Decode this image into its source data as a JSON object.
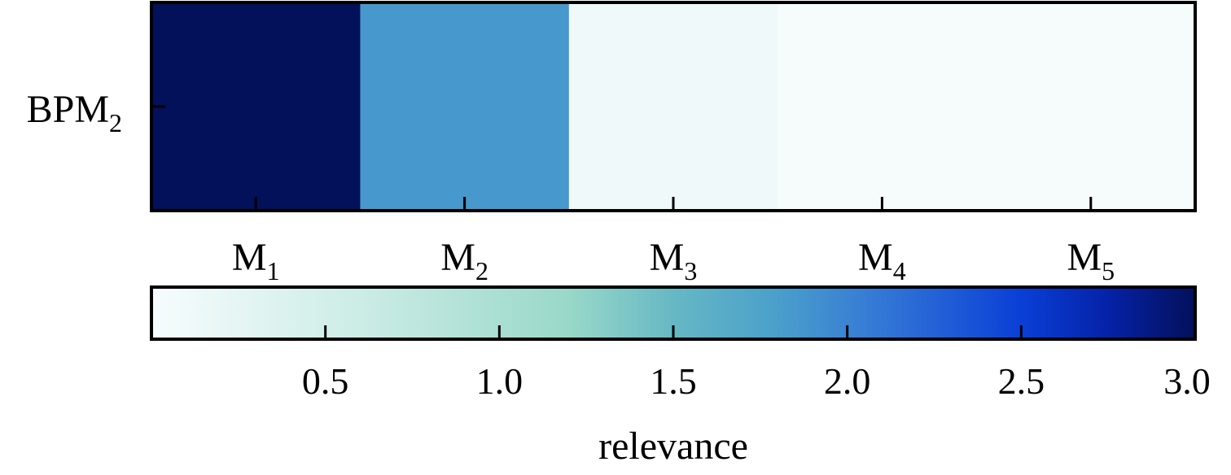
{
  "chart_data": {
    "type": "heatmap",
    "rows": [
      {
        "label": "BPM",
        "subscript": "2"
      }
    ],
    "columns": [
      {
        "label": "M",
        "subscript": "1"
      },
      {
        "label": "M",
        "subscript": "2"
      },
      {
        "label": "M",
        "subscript": "3"
      },
      {
        "label": "M",
        "subscript": "4"
      },
      {
        "label": "M",
        "subscript": "5"
      }
    ],
    "values": [
      [
        3.0,
        1.85,
        0.1,
        0.02,
        0.02
      ]
    ],
    "colorbar": {
      "label": "relevance",
      "range": [
        0.0,
        3.0
      ],
      "ticks": [
        0.5,
        1.0,
        1.5,
        2.0,
        2.5,
        3.0
      ],
      "tick_labels": [
        "0.5",
        "1.0",
        "1.5",
        "2.0",
        "2.5",
        "3.0"
      ],
      "colormap": [
        {
          "value": 0.0,
          "color": "#f7fcfd"
        },
        {
          "value": 0.6,
          "color": "#ccece6"
        },
        {
          "value": 1.2,
          "color": "#99d8c9"
        },
        {
          "value": 1.5,
          "color": "#66b8c4"
        },
        {
          "value": 1.8,
          "color": "#4a9fcb"
        },
        {
          "value": 2.1,
          "color": "#3377d6"
        },
        {
          "value": 2.5,
          "color": "#0a3fd6"
        },
        {
          "value": 2.75,
          "color": "#0522a8"
        },
        {
          "value": 3.0,
          "color": "#03105a"
        }
      ],
      "position": "bottom"
    }
  }
}
